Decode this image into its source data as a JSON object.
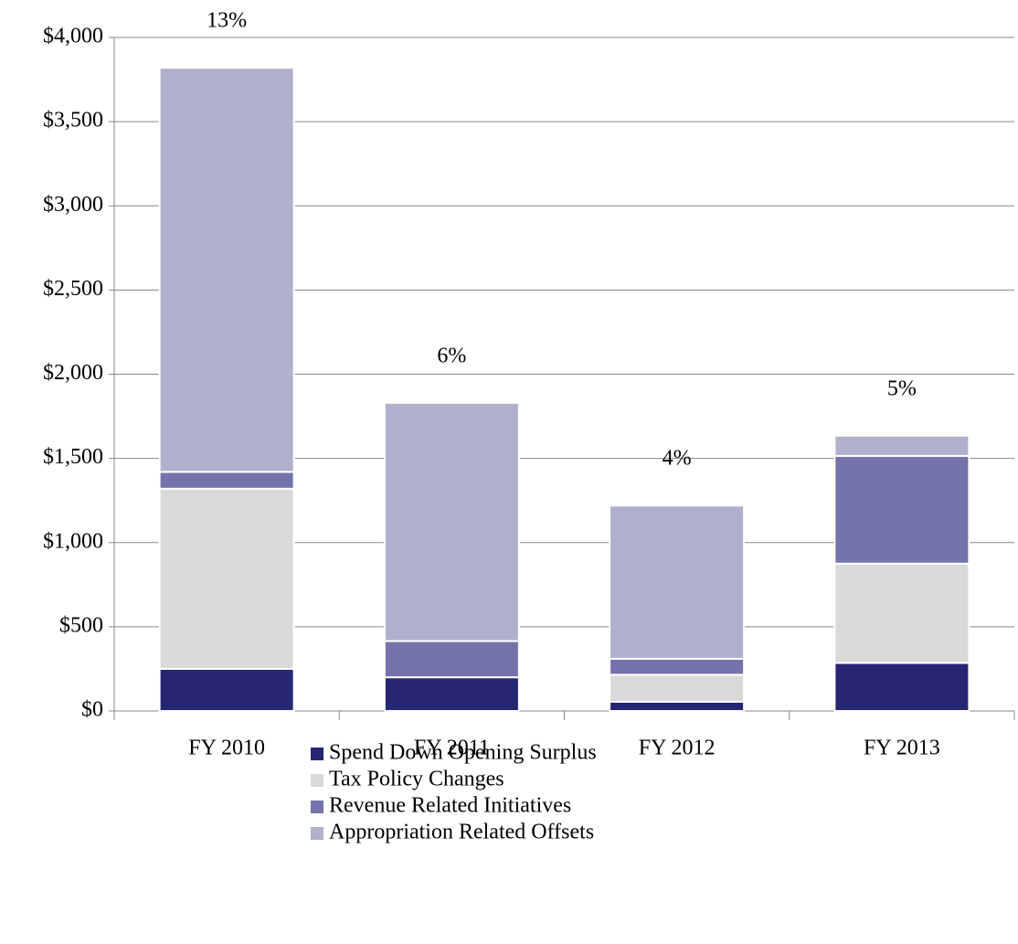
{
  "chart_data": {
    "type": "stacked_bar",
    "categories": [
      "FY 2010",
      "FY 2011",
      "FY 2012",
      "FY 2013"
    ],
    "series": [
      {
        "name": "Spend Down Opening Surplus",
        "color": "#262673",
        "values": [
          250,
          200,
          55,
          285
        ]
      },
      {
        "name": "Tax Policy Changes",
        "color": "#d9d9d9",
        "values": [
          1070,
          0,
          160,
          590
        ]
      },
      {
        "name": "Revenue Related Initiatives",
        "color": "#7473ab",
        "values": [
          100,
          215,
          95,
          640
        ]
      },
      {
        "name": "Appropriation Related Offsets",
        "color": "#b0b0cc",
        "values": [
          2400,
          1415,
          910,
          120
        ]
      }
    ],
    "annotations": [
      "13%",
      "6%",
      "4%",
      "5%"
    ],
    "ylim": [
      0,
      4000
    ],
    "yticks": [
      {
        "value": 0,
        "label": "$0"
      },
      {
        "value": 500,
        "label": "$500"
      },
      {
        "value": 1000,
        "label": "$1,000"
      },
      {
        "value": 1500,
        "label": "$1,500"
      },
      {
        "value": 2000,
        "label": "$2,000"
      },
      {
        "value": 2500,
        "label": "$2,500"
      },
      {
        "value": 3000,
        "label": "$3,000"
      },
      {
        "value": 3500,
        "label": "$3,500"
      },
      {
        "value": 4000,
        "label": "$4,000"
      }
    ],
    "grid": true
  }
}
